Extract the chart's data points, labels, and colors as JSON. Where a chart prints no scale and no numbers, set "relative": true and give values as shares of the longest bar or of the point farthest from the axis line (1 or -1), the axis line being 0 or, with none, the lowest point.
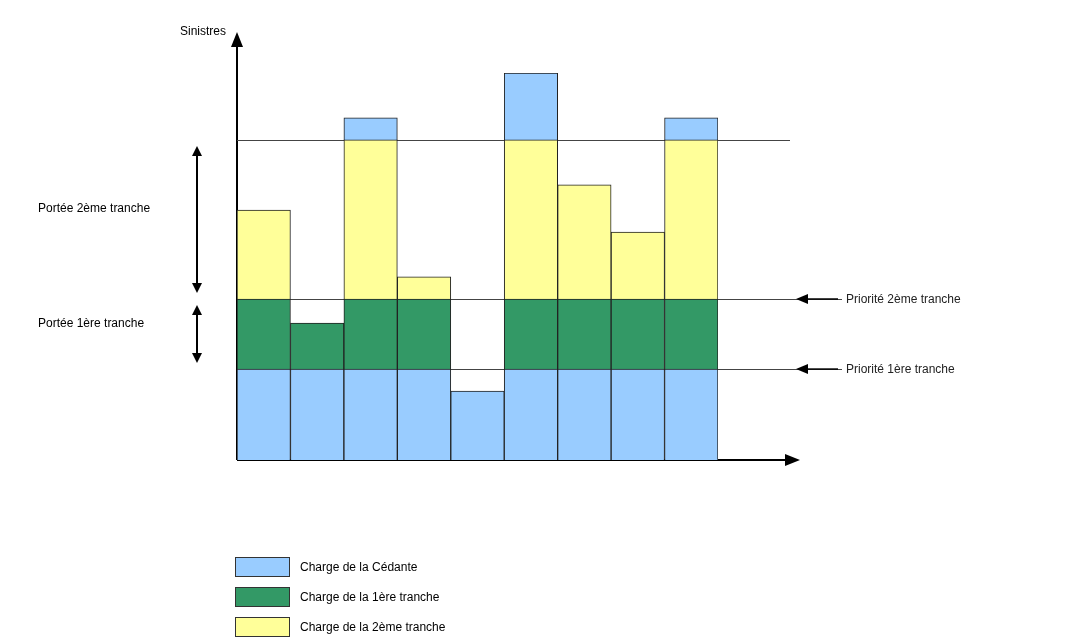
{
  "chart_data": {
    "type": "bar",
    "stacked": true,
    "relative": true,
    "ylabel": "Sinistres",
    "categories": [
      null,
      null,
      null,
      null,
      null,
      null,
      null,
      null,
      null
    ],
    "series": [
      {
        "name": "Charge de la Cédante",
        "color": "#99ccff",
        "values": [
          0.235,
          0.235,
          0.235,
          0.235,
          0.178,
          0.235,
          0.235,
          0.235,
          0.235
        ]
      },
      {
        "name": "Charge de la 1ère tranche",
        "color": "#339966",
        "values": [
          0.181,
          0.119,
          0.181,
          0.181,
          null,
          0.181,
          0.181,
          0.181,
          0.181
        ]
      },
      {
        "name": "Charge de la 2ème tranche",
        "color": "#ffff99",
        "values": [
          0.23,
          null,
          0.411,
          0.057,
          null,
          0.411,
          0.295,
          0.173,
          0.411
        ]
      },
      {
        "color": "#99ccff",
        "values": [
          null,
          null,
          0.057,
          null,
          null,
          0.173,
          null,
          null,
          0.057
        ]
      }
    ],
    "ref_lines": [
      {
        "axis": "y",
        "value": 0.235,
        "label": "Priorité 1ère tranche"
      },
      {
        "axis": "y",
        "value": 0.416,
        "label": "Priorité 2ème tranche"
      },
      {
        "axis": "y",
        "value": 0.827
      }
    ],
    "annotations": [
      "Portée 2ème tranche",
      "Portée 1ère tranche"
    ],
    "legend": "bottom"
  }
}
